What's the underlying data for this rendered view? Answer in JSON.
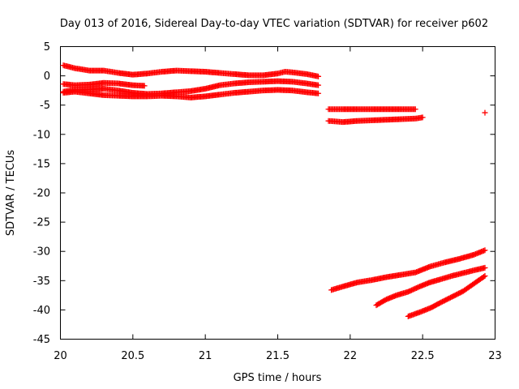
{
  "chart_data": {
    "type": "scatter",
    "title": "Day 013 of 2016, Sidereal Day-to-day VTEC variation (SDTVAR) for receiver p602",
    "xlabel": "GPS time / hours",
    "ylabel": "SDTVAR / TECUs",
    "xlim": [
      20,
      23
    ],
    "ylim": [
      -45,
      5
    ],
    "xticks": [
      "20",
      "20.5",
      "21",
      "21.5",
      "22",
      "22.5",
      "23"
    ],
    "yticks": [
      "5",
      "0",
      "-5",
      "-10",
      "-15",
      "-20",
      "-25",
      "-30",
      "-35",
      "-40",
      "-45"
    ],
    "grid": false,
    "legend": "none",
    "marker": "plus",
    "color": "#ff0000",
    "series": [
      {
        "points": [
          [
            20.02,
            1.8
          ],
          [
            20.1,
            1.3
          ],
          [
            20.2,
            0.9
          ],
          [
            20.3,
            0.9
          ],
          [
            20.4,
            0.5
          ],
          [
            20.5,
            0.2
          ],
          [
            20.6,
            0.4
          ],
          [
            20.7,
            0.7
          ],
          [
            20.8,
            0.9
          ],
          [
            20.9,
            0.8
          ],
          [
            21.0,
            0.7
          ],
          [
            21.1,
            0.5
          ],
          [
            21.2,
            0.3
          ],
          [
            21.3,
            0.1
          ],
          [
            21.4,
            0.1
          ],
          [
            21.5,
            0.4
          ],
          [
            21.55,
            0.7
          ],
          [
            21.6,
            0.6
          ],
          [
            21.7,
            0.3
          ],
          [
            21.78,
            -0.1
          ]
        ]
      },
      {
        "points": [
          [
            20.02,
            -1.4
          ],
          [
            20.1,
            -1.6
          ],
          [
            20.2,
            -1.5
          ],
          [
            20.3,
            -1.2
          ],
          [
            20.4,
            -1.3
          ],
          [
            20.5,
            -1.6
          ],
          [
            20.58,
            -1.7
          ]
        ]
      },
      {
        "points": [
          [
            20.02,
            -2.7
          ],
          [
            20.1,
            -2.4
          ],
          [
            20.2,
            -2.3
          ],
          [
            20.3,
            -2.2
          ],
          [
            20.4,
            -2.5
          ],
          [
            20.5,
            -2.9
          ],
          [
            20.6,
            -3.1
          ],
          [
            20.7,
            -3.0
          ],
          [
            20.8,
            -2.8
          ],
          [
            20.9,
            -2.6
          ],
          [
            21.0,
            -2.2
          ],
          [
            21.1,
            -1.6
          ],
          [
            21.2,
            -1.3
          ],
          [
            21.3,
            -1.1
          ],
          [
            21.4,
            -1.0
          ],
          [
            21.5,
            -0.9
          ],
          [
            21.6,
            -1.0
          ],
          [
            21.7,
            -1.3
          ],
          [
            21.78,
            -1.6
          ]
        ]
      },
      {
        "points": [
          [
            20.02,
            -2.9
          ],
          [
            20.1,
            -2.7
          ],
          [
            20.2,
            -3.0
          ],
          [
            20.3,
            -3.3
          ],
          [
            20.4,
            -3.4
          ],
          [
            20.5,
            -3.5
          ],
          [
            20.6,
            -3.5
          ],
          [
            20.7,
            -3.4
          ],
          [
            20.8,
            -3.5
          ],
          [
            20.9,
            -3.7
          ],
          [
            21.0,
            -3.5
          ],
          [
            21.1,
            -3.2
          ],
          [
            21.2,
            -2.9
          ],
          [
            21.3,
            -2.7
          ],
          [
            21.4,
            -2.5
          ],
          [
            21.5,
            -2.4
          ],
          [
            21.6,
            -2.5
          ],
          [
            21.7,
            -2.8
          ],
          [
            21.78,
            -3.0
          ]
        ]
      },
      {
        "points": [
          [
            21.85,
            -5.7
          ],
          [
            21.95,
            -5.7
          ],
          [
            22.05,
            -5.7
          ],
          [
            22.15,
            -5.7
          ],
          [
            22.25,
            -5.7
          ],
          [
            22.35,
            -5.7
          ],
          [
            22.45,
            -5.7
          ]
        ]
      },
      {
        "points": [
          [
            21.85,
            -7.7
          ],
          [
            21.95,
            -7.9
          ],
          [
            22.05,
            -7.7
          ],
          [
            22.15,
            -7.6
          ],
          [
            22.25,
            -7.5
          ],
          [
            22.35,
            -7.4
          ],
          [
            22.45,
            -7.3
          ],
          [
            22.5,
            -7.1
          ]
        ]
      },
      {
        "points": [
          [
            22.93,
            -6.3
          ]
        ]
      },
      {
        "points": [
          [
            21.87,
            -36.6
          ],
          [
            21.95,
            -36.0
          ],
          [
            22.05,
            -35.3
          ],
          [
            22.15,
            -34.9
          ],
          [
            22.25,
            -34.4
          ],
          [
            22.35,
            -34.0
          ],
          [
            22.45,
            -33.6
          ],
          [
            22.55,
            -32.6
          ],
          [
            22.65,
            -31.9
          ],
          [
            22.75,
            -31.3
          ],
          [
            22.85,
            -30.6
          ],
          [
            22.93,
            -29.8
          ]
        ]
      },
      {
        "points": [
          [
            22.18,
            -39.2
          ],
          [
            22.25,
            -38.2
          ],
          [
            22.32,
            -37.5
          ],
          [
            22.4,
            -36.9
          ],
          [
            22.48,
            -36.0
          ],
          [
            22.55,
            -35.3
          ],
          [
            22.62,
            -34.8
          ],
          [
            22.7,
            -34.2
          ],
          [
            22.78,
            -33.7
          ],
          [
            22.86,
            -33.2
          ],
          [
            22.93,
            -32.8
          ]
        ]
      },
      {
        "points": [
          [
            22.4,
            -41.1
          ],
          [
            22.48,
            -40.4
          ],
          [
            22.56,
            -39.6
          ],
          [
            22.62,
            -38.8
          ],
          [
            22.7,
            -37.8
          ],
          [
            22.78,
            -36.8
          ],
          [
            22.86,
            -35.4
          ],
          [
            22.93,
            -34.2
          ]
        ]
      }
    ]
  }
}
